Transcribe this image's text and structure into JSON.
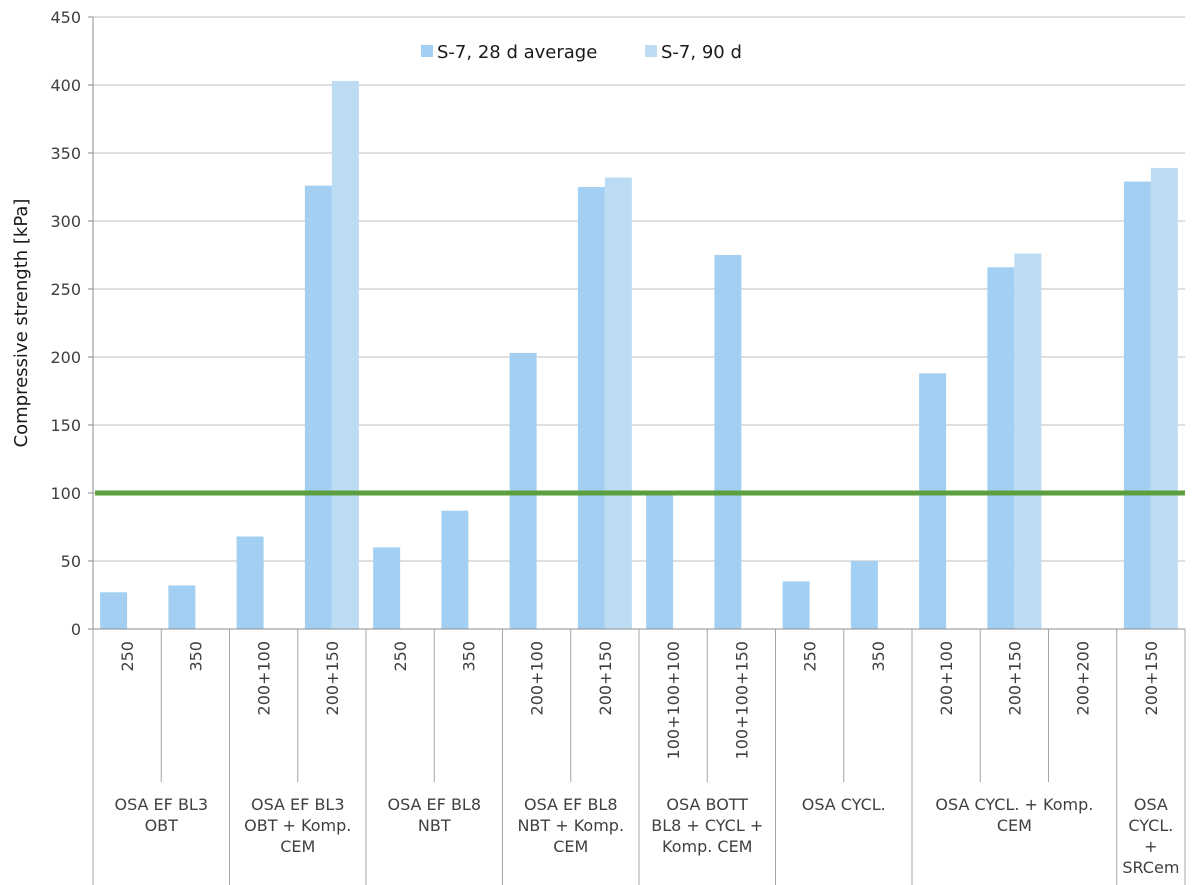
{
  "chart_data": {
    "type": "bar",
    "ylabel": "Compressive strength [kPa]",
    "ylim": [
      0,
      450
    ],
    "yticks": [
      0,
      50,
      100,
      150,
      200,
      250,
      300,
      350,
      400,
      450
    ],
    "grid": true,
    "legend_position": "top-center",
    "reference_line": {
      "value": 100,
      "color": "#5b9f3f"
    },
    "categories": [
      "250",
      "350",
      "200+100",
      "200+150",
      "250",
      "350",
      "200+100",
      "200+150",
      "100+100+100",
      "100+100+150",
      "250",
      "350",
      "200+100",
      "200+150",
      "200+200",
      "200+150"
    ],
    "groups": [
      {
        "label": [
          "OSA EF BL3",
          "OBT"
        ],
        "span": 2
      },
      {
        "label": [
          "OSA EF BL3",
          "OBT + Komp.",
          "CEM"
        ],
        "span": 2
      },
      {
        "label": [
          "OSA EF BL8",
          "NBT"
        ],
        "span": 2
      },
      {
        "label": [
          "OSA EF BL8",
          "NBT + Komp.",
          "CEM"
        ],
        "span": 2
      },
      {
        "label": [
          "OSA BOTT",
          "BL8 + CYCL +",
          "Komp. CEM"
        ],
        "span": 2
      },
      {
        "label": [
          "OSA CYCL."
        ],
        "span": 2
      },
      {
        "label": [
          "OSA CYCL. + Komp.",
          "CEM"
        ],
        "span": 3
      },
      {
        "label": [
          "OSA",
          "CYCL.",
          "+",
          "SRCem"
        ],
        "span": 1
      }
    ],
    "series": [
      {
        "name": "S-7, 28 d average",
        "color": "#a3d0f2",
        "values": [
          27,
          32,
          68,
          326,
          60,
          87,
          203,
          325,
          100,
          275,
          35,
          50,
          188,
          266,
          null,
          329
        ]
      },
      {
        "name": "S-7, 90 d",
        "color": "#bcdcf4",
        "values": [
          null,
          null,
          null,
          403,
          null,
          null,
          null,
          332,
          null,
          null,
          null,
          null,
          null,
          276,
          null,
          339
        ]
      }
    ]
  }
}
